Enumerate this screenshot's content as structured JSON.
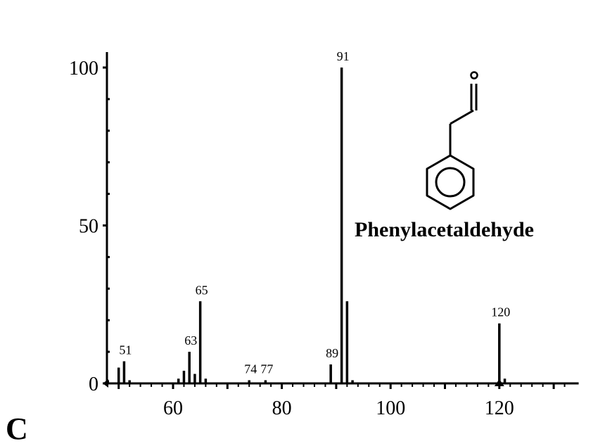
{
  "chart_data": {
    "type": "bar",
    "xlim": [
      48,
      132
    ],
    "ylim": [
      0,
      100
    ],
    "x_ticks": [
      60,
      80,
      100,
      120
    ],
    "y_ticks": [
      0,
      50,
      100
    ],
    "x_tick_labels": [
      "60",
      "80",
      "100",
      "120"
    ],
    "y_tick_labels": [
      "0",
      "50",
      "100"
    ],
    "peaks": [
      {
        "x": 48,
        "y": 1
      },
      {
        "x": 50,
        "y": 5
      },
      {
        "x": 51,
        "y": 7
      },
      {
        "x": 52,
        "y": 1
      },
      {
        "x": 61,
        "y": 1.5
      },
      {
        "x": 62,
        "y": 4
      },
      {
        "x": 63,
        "y": 10
      },
      {
        "x": 64,
        "y": 3
      },
      {
        "x": 65,
        "y": 26
      },
      {
        "x": 66,
        "y": 1.5
      },
      {
        "x": 74,
        "y": 1
      },
      {
        "x": 77,
        "y": 1
      },
      {
        "x": 89,
        "y": 6
      },
      {
        "x": 91,
        "y": 100
      },
      {
        "x": 92,
        "y": 26
      },
      {
        "x": 93,
        "y": 1
      },
      {
        "x": 120,
        "y": 19
      },
      {
        "x": 121,
        "y": 1.5
      }
    ],
    "peak_labels": [
      "51",
      "63",
      "65",
      "74",
      "77",
      "89",
      "91",
      "120"
    ],
    "annotation": "Phenylacetaldehyde"
  },
  "figure_letter": "C",
  "structure_icon": "phenylacetaldehyde-structure"
}
